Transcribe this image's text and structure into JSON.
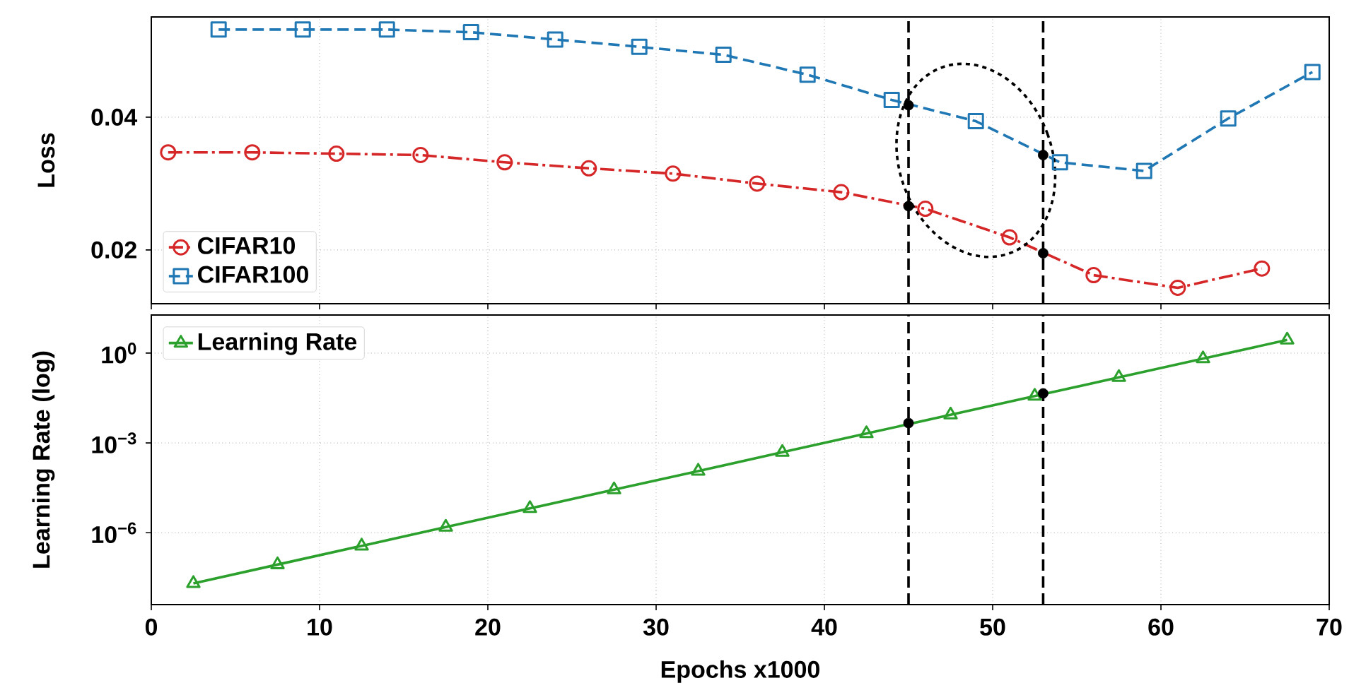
{
  "chart_data": [
    {
      "type": "line",
      "ylabel": "Loss",
      "xlim": [
        0,
        70
      ],
      "xticks": [
        0,
        10,
        20,
        30,
        40,
        50,
        60,
        70
      ],
      "ylim": [
        0.0119,
        0.0551
      ],
      "yticks": [
        0.02,
        0.04
      ],
      "grid": true,
      "legend": "bottom left",
      "tick_labels": "y",
      "series": [
        {
          "name": "CIFAR10",
          "color": "#d62728",
          "marker": "circle",
          "line_style": "dashdot",
          "x": [
            1,
            6,
            11,
            16,
            21,
            26,
            31,
            36,
            41,
            46,
            51,
            56,
            61,
            66
          ],
          "values": [
            0.0347,
            0.0347,
            0.0345,
            0.0343,
            0.0332,
            0.0323,
            0.0315,
            0.03,
            0.0287,
            0.0262,
            0.0219,
            0.0162,
            0.0143,
            0.0172
          ]
        },
        {
          "name": "CIFAR100",
          "color": "#1f77b4",
          "marker": "square",
          "line_style": "dashed",
          "x": [
            4,
            9,
            14,
            19,
            24,
            29,
            34,
            39,
            44,
            49,
            54,
            59,
            64,
            69
          ],
          "values": [
            0.0532,
            0.0532,
            0.0532,
            0.0528,
            0.0517,
            0.0506,
            0.0494,
            0.0464,
            0.0426,
            0.0394,
            0.0332,
            0.0319,
            0.0398,
            0.0468
          ]
        },
        {
          "type": "scatter",
          "color": "#000000",
          "marker": "circle",
          "x": [
            45,
            45,
            53,
            53
          ],
          "values": [
            0.0418,
            0.0266,
            0.0343,
            0.0195
          ]
        }
      ],
      "ref_lines": [
        {
          "axis": "x",
          "value": 45,
          "color": "#000000",
          "line_style": "dashed"
        },
        {
          "axis": "x",
          "value": 53,
          "color": "#000000",
          "line_style": "dashed"
        }
      ]
    },
    {
      "type": "line",
      "ylabel": "Learning Rate (log)",
      "xlabel": "Epochs x1000",
      "log": "y",
      "xlim": [
        0,
        70
      ],
      "xticks": [
        0,
        10,
        20,
        30,
        40,
        50,
        60,
        70
      ],
      "ylim": [
        4e-09,
        18.6
      ],
      "yticks": [
        {
          "value": 1e-06,
          "label": "10$^{−6}$"
        },
        {
          "value": 0.001,
          "label": "10$^{−3}$"
        },
        {
          "value": 1,
          "label": "10$^{0}$"
        }
      ],
      "grid": true,
      "legend": "top left",
      "series": [
        {
          "name": "Learning Rate",
          "color": "#2ca02c",
          "marker": "triangle",
          "line_style": "solid",
          "x": [
            2.5,
            7.5,
            12.5,
            17.5,
            22.5,
            27.5,
            32.5,
            37.5,
            42.5,
            47.5,
            52.5,
            57.5,
            62.5,
            67.5
          ],
          "values": [
            2.05e-08,
            8.66e-08,
            3.65e-07,
            1.54e-06,
            6.49e-06,
            2.74e-05,
            0.000115,
            0.000487,
            0.00205,
            0.00866,
            0.0365,
            0.154,
            0.649,
            2.74
          ]
        },
        {
          "type": "scatter",
          "color": "#000000",
          "marker": "circle",
          "x": [
            45,
            53
          ],
          "values": [
            0.0046,
            0.045
          ]
        }
      ],
      "ref_lines": [
        {
          "axis": "x",
          "value": 45,
          "color": "#000000",
          "line_style": "dashed"
        },
        {
          "axis": "x",
          "value": 53,
          "color": "#000000",
          "line_style": "dashed"
        }
      ]
    }
  ]
}
